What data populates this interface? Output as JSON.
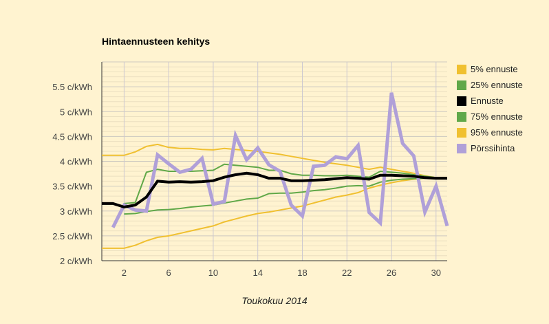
{
  "chart_data": {
    "type": "line",
    "title": "Hintaennusteen kehitys",
    "xlabel": "Toukokuu 2014",
    "ylabel": "",
    "xlim": [
      0,
      31
    ],
    "ylim": [
      2,
      6
    ],
    "x_ticks": [
      2,
      6,
      10,
      14,
      18,
      22,
      26,
      30
    ],
    "y_ticks": [
      {
        "v": 2,
        "label": "2 c/kWh"
      },
      {
        "v": 2.5,
        "label": "2.5 c/kWh"
      },
      {
        "v": 3,
        "label": "3 c/kWh"
      },
      {
        "v": 3.5,
        "label": "3.5 c/kWh"
      },
      {
        "v": 4,
        "label": "4 c/kWh"
      },
      {
        "v": 4.5,
        "label": "4.5 c/kWh"
      },
      {
        "v": 5,
        "label": "5 c/kWh"
      },
      {
        "v": 5.5,
        "label": "5.5 c/kWh"
      }
    ],
    "grid": true,
    "legend_position": "right",
    "series": [
      {
        "name": "5% ennuste",
        "color": "#f0c030",
        "width": 2,
        "x0": 0,
        "values": [
          2.25,
          2.25,
          2.25,
          2.31,
          2.4,
          2.47,
          2.5,
          2.55,
          2.6,
          2.65,
          2.7,
          2.78,
          2.84,
          2.9,
          2.95,
          2.98,
          3.02,
          3.06,
          3.1,
          3.16,
          3.22,
          3.28,
          3.32,
          3.37,
          3.46,
          3.52,
          3.57,
          3.61,
          3.64,
          3.66,
          3.67
        ]
      },
      {
        "name": "25% ennuste",
        "color": "#60a848",
        "width": 2,
        "x0": 2,
        "values": [
          2.94,
          2.95,
          2.99,
          3.02,
          3.03,
          3.05,
          3.08,
          3.1,
          3.12,
          3.16,
          3.2,
          3.24,
          3.26,
          3.35,
          3.36,
          3.36,
          3.38,
          3.41,
          3.43,
          3.46,
          3.5,
          3.51,
          3.5,
          3.58,
          3.62,
          3.64,
          3.65,
          3.66,
          3.67
        ]
      },
      {
        "name": "Ennuste",
        "color": "#000000",
        "width": 4,
        "x0": 0,
        "values": [
          3.15,
          3.15,
          3.08,
          3.12,
          3.28,
          3.6,
          3.58,
          3.59,
          3.58,
          3.59,
          3.61,
          3.68,
          3.73,
          3.76,
          3.73,
          3.66,
          3.66,
          3.61,
          3.61,
          3.62,
          3.63,
          3.65,
          3.67,
          3.66,
          3.64,
          3.72,
          3.72,
          3.71,
          3.7,
          3.67,
          3.66,
          3.66
        ]
      },
      {
        "name": "75% ennuste",
        "color": "#60a848",
        "width": 2,
        "x0": 2,
        "values": [
          3.15,
          3.17,
          3.78,
          3.84,
          3.8,
          3.8,
          3.8,
          3.81,
          3.82,
          3.94,
          3.92,
          3.9,
          3.88,
          3.82,
          3.82,
          3.75,
          3.72,
          3.72,
          3.71,
          3.71,
          3.72,
          3.7,
          3.68,
          3.8,
          3.78,
          3.76,
          3.73,
          3.7,
          3.67
        ]
      },
      {
        "name": "95% ennuste",
        "color": "#f0c030",
        "width": 2,
        "x0": 0,
        "values": [
          4.12,
          4.12,
          4.12,
          4.19,
          4.3,
          4.34,
          4.28,
          4.26,
          4.26,
          4.24,
          4.23,
          4.26,
          4.24,
          4.22,
          4.2,
          4.17,
          4.14,
          4.1,
          4.06,
          4.02,
          3.98,
          3.95,
          3.92,
          3.88,
          3.84,
          3.88,
          3.84,
          3.8,
          3.76,
          3.71,
          3.67,
          3.67
        ]
      },
      {
        "name": "Pörssihinta",
        "color": "#b0a0d8",
        "width": 5,
        "x0": 1,
        "values": [
          2.67,
          3.12,
          3.02,
          3.0,
          4.13,
          3.95,
          3.78,
          3.84,
          4.06,
          3.14,
          3.19,
          4.52,
          4.03,
          4.27,
          3.93,
          3.8,
          3.12,
          2.9,
          3.9,
          3.92,
          4.09,
          4.05,
          4.32,
          2.97,
          2.76,
          5.38,
          4.36,
          4.11,
          2.98,
          3.5,
          2.7
        ]
      }
    ]
  }
}
